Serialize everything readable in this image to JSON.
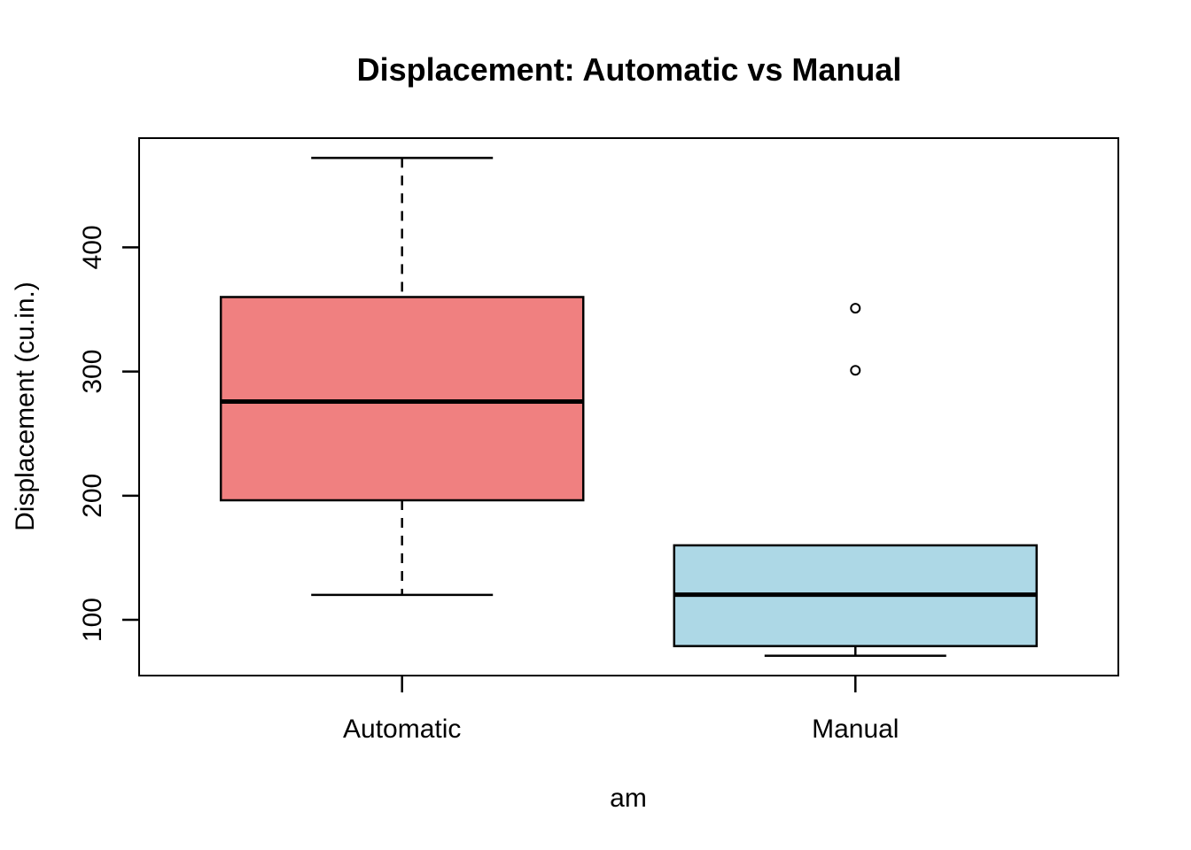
{
  "chart_data": {
    "type": "boxplot",
    "title": "Displacement: Automatic vs Manual",
    "xlabel": "am",
    "ylabel": "Displacement (cu.in.)",
    "categories": [
      "Automatic",
      "Manual"
    ],
    "yticks": [
      100,
      200,
      300,
      400
    ],
    "ylim": [
      55.1,
      488.0
    ],
    "grid": false,
    "legend": "none",
    "series": [
      {
        "name": "Automatic",
        "lower_whisker": 120.1,
        "q1": 196.3,
        "median": 275.8,
        "q3": 360,
        "upper_whisker": 472,
        "outliers": [],
        "fill": "#F08080"
      },
      {
        "name": "Manual",
        "lower_whisker": 71.1,
        "q1": 78.85,
        "median": 120.3,
        "q3": 160,
        "upper_whisker": 160,
        "outliers": [
          301,
          351
        ],
        "fill": "#ADD8E6"
      }
    ],
    "colors": {
      "stroke": "#000000",
      "median": "#000000",
      "background": "#FFFFFF",
      "box_fill_automatic": "#F08080",
      "box_fill_manual": "#ADD8E6"
    }
  }
}
